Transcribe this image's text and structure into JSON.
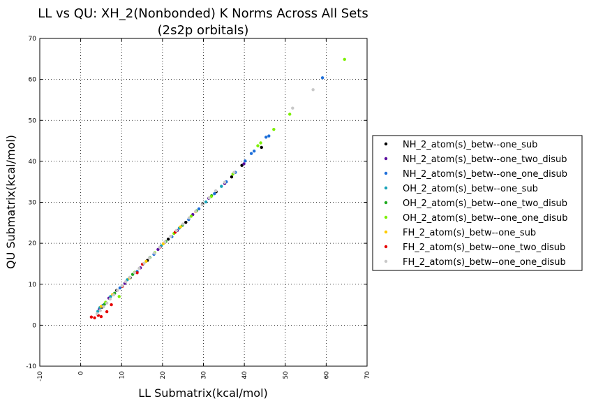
{
  "chart_data": {
    "type": "scatter",
    "title_lines": [
      "LL vs QU: XH_2(Nonbonded) K Norms Across All Sets",
      "(2s2p orbitals)"
    ],
    "xlabel": "LL Submatrix(kcal/mol)",
    "ylabel": "QU Submatrix(kcal/mol)",
    "xlim": [
      -10,
      70
    ],
    "ylim": [
      -10,
      70
    ],
    "x_ticks": [
      -10,
      0,
      10,
      20,
      30,
      40,
      50,
      60,
      70
    ],
    "y_ticks": [
      -10,
      0,
      10,
      20,
      30,
      40,
      50,
      60,
      70
    ],
    "x_tick_labels": [
      "-10",
      "0",
      "10",
      "20",
      "30",
      "40",
      "50",
      "60",
      "70"
    ],
    "y_tick_labels": [
      "-10",
      "0",
      "10",
      "20",
      "30",
      "40",
      "50",
      "60",
      "70"
    ],
    "grid": true,
    "legend_position": "right",
    "series": [
      {
        "name": "NH_2_atom(s)_betw--one_sub",
        "color": "#000000",
        "points": [
          [
            5.2,
            4.4
          ],
          [
            8.8,
            8.5
          ],
          [
            12.1,
            11.6
          ],
          [
            16.3,
            15.8
          ],
          [
            21.4,
            21.0
          ],
          [
            25.7,
            25.1
          ],
          [
            29.8,
            29.6
          ],
          [
            33.1,
            32.6
          ],
          [
            36.9,
            36.2
          ],
          [
            39.4,
            39.0
          ],
          [
            44.2,
            43.4
          ]
        ]
      },
      {
        "name": "NH_2_atom(s)_betw--one_two_disub",
        "color": "#5b0f9e",
        "points": [
          [
            4.6,
            4.0
          ],
          [
            6.9,
            6.6
          ],
          [
            10.8,
            10.2
          ],
          [
            14.6,
            14.0
          ],
          [
            18.9,
            18.5
          ],
          [
            23.6,
            23.1
          ],
          [
            27.4,
            27.0
          ],
          [
            31.3,
            31.0
          ],
          [
            35.2,
            34.6
          ],
          [
            39.9,
            39.4
          ]
        ]
      },
      {
        "name": "NH_2_atom(s)_betw--one_one_disub",
        "color": "#1e6fd9",
        "points": [
          [
            5.4,
            4.8
          ],
          [
            9.6,
            9.1
          ],
          [
            13.8,
            13.1
          ],
          [
            17.9,
            17.3
          ],
          [
            22.3,
            21.6
          ],
          [
            26.4,
            25.8
          ],
          [
            28.9,
            28.4
          ],
          [
            32.7,
            32.1
          ],
          [
            35.6,
            35.0
          ],
          [
            37.8,
            37.3
          ],
          [
            40.2,
            40.1
          ],
          [
            41.7,
            41.9
          ],
          [
            42.4,
            42.5
          ],
          [
            45.3,
            45.9
          ],
          [
            46.0,
            46.2
          ],
          [
            59.1,
            60.4
          ]
        ]
      },
      {
        "name": "OH_2_atom(s)_betw--one_sub",
        "color": "#17a3b8",
        "points": [
          [
            4.2,
            3.4
          ],
          [
            4.7,
            4.3
          ],
          [
            7.3,
            7.0
          ],
          [
            11.4,
            11.1
          ],
          [
            15.2,
            14.9
          ],
          [
            19.7,
            19.4
          ],
          [
            24.1,
            23.7
          ],
          [
            30.6,
            30.1
          ],
          [
            34.4,
            33.9
          ]
        ]
      },
      {
        "name": "OH_2_atom(s)_betw--one_two_disub",
        "color": "#1faa1f",
        "points": [
          [
            5.8,
            5.1
          ],
          [
            8.3,
            7.8
          ],
          [
            12.7,
            12.4
          ],
          [
            16.9,
            16.5
          ],
          [
            20.8,
            20.4
          ],
          [
            24.9,
            24.4
          ],
          [
            28.3,
            27.9
          ],
          [
            32.0,
            31.6
          ]
        ]
      },
      {
        "name": "OH_2_atom(s)_betw--one_one_disub",
        "color": "#7cf000",
        "points": [
          [
            6.1,
            5.6
          ],
          [
            9.4,
            7.0
          ],
          [
            13.2,
            12.9
          ],
          [
            18.1,
            17.7
          ],
          [
            22.8,
            22.4
          ],
          [
            27.0,
            26.6
          ],
          [
            31.9,
            31.4
          ],
          [
            37.2,
            36.9
          ],
          [
            43.3,
            43.8
          ],
          [
            44.0,
            44.5
          ],
          [
            47.2,
            47.8
          ],
          [
            51.1,
            51.5
          ],
          [
            64.5,
            64.9
          ]
        ]
      },
      {
        "name": "FH_2_atom(s)_betw--one_sub",
        "color": "#ffcc00",
        "points": [
          [
            5.0,
            4.6
          ],
          [
            7.8,
            7.5
          ],
          [
            11.9,
            11.5
          ],
          [
            16.0,
            15.6
          ],
          [
            20.2,
            19.9
          ],
          [
            24.4,
            24.0
          ],
          [
            28.1,
            27.7
          ]
        ]
      },
      {
        "name": "FH_2_atom(s)_betw--one_two_disub",
        "color": "#e60000",
        "points": [
          [
            2.6,
            2.0
          ],
          [
            3.4,
            1.8
          ],
          [
            4.3,
            2.4
          ],
          [
            5.0,
            2.1
          ],
          [
            6.4,
            3.3
          ],
          [
            7.5,
            5.0
          ],
          [
            10.2,
            9.5
          ],
          [
            13.8,
            12.8
          ],
          [
            15.1,
            14.9
          ],
          [
            19.4,
            19.0
          ],
          [
            23.1,
            22.7
          ]
        ]
      },
      {
        "name": "FH_2_atom(s)_betw--one_one_disub",
        "color": "#c8c8c8",
        "points": [
          [
            4.0,
            2.8
          ],
          [
            4.8,
            3.6
          ],
          [
            5.6,
            4.5
          ],
          [
            6.4,
            5.4
          ],
          [
            7.2,
            6.4
          ],
          [
            8.1,
            7.4
          ],
          [
            9.0,
            8.5
          ],
          [
            10.1,
            9.6
          ],
          [
            11.0,
            10.6
          ],
          [
            12.0,
            11.7
          ],
          [
            13.2,
            12.8
          ],
          [
            14.3,
            13.9
          ],
          [
            15.5,
            15.1
          ],
          [
            16.8,
            16.4
          ],
          [
            18.0,
            17.6
          ],
          [
            19.3,
            19.0
          ],
          [
            20.6,
            20.3
          ],
          [
            22.0,
            21.7
          ],
          [
            23.4,
            23.1
          ],
          [
            25.0,
            24.7
          ],
          [
            26.5,
            26.2
          ],
          [
            28.1,
            27.8
          ],
          [
            29.7,
            29.4
          ],
          [
            31.4,
            31.1
          ],
          [
            33.0,
            32.8
          ],
          [
            35.2,
            34.9
          ],
          [
            37.5,
            37.3
          ],
          [
            51.8,
            53.0
          ],
          [
            56.8,
            57.5
          ]
        ]
      }
    ]
  }
}
